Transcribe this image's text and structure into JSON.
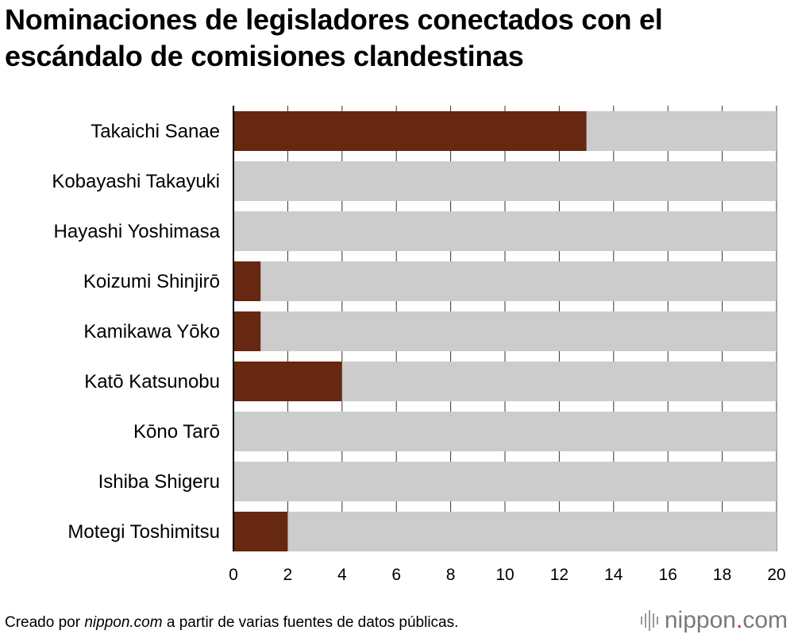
{
  "title": "Nominaciones de legisladores conectados con el escándalo de comisiones clandestinas",
  "footer": {
    "prefix": "Creado por ",
    "site": "nippon.com",
    "suffix": " a partir de varias fuentes de datos públicas."
  },
  "brand": {
    "name": "nippon",
    "dot": ".",
    "tld": "com"
  },
  "colors": {
    "bar": "#662810",
    "track": "#cccccc",
    "axis": "#000000"
  },
  "chart_data": {
    "type": "bar",
    "orientation": "horizontal",
    "categories": [
      "Takaichi Sanae",
      "Kobayashi Takayuki",
      "Hayashi Yoshimasa",
      "Koizumi Shinjirō",
      "Kamikawa Yōko",
      "Katō Katsunobu",
      "Kōno Tarō",
      "Ishiba Shigeru",
      "Motegi Toshimitsu"
    ],
    "values": [
      13,
      0,
      0,
      1,
      1,
      4,
      0,
      0,
      2
    ],
    "xlim": [
      0,
      20
    ],
    "xticks": [
      0,
      2,
      4,
      6,
      8,
      10,
      12,
      14,
      16,
      18,
      20
    ],
    "grid": true
  }
}
